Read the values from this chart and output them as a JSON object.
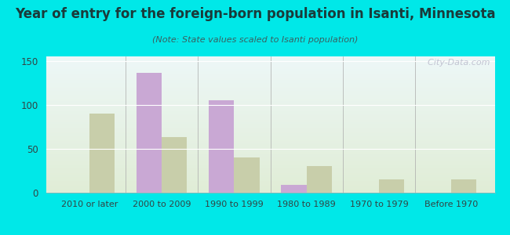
{
  "title": "Year of entry for the foreign-born population in Isanti, Minnesota",
  "subtitle": "(Note: State values scaled to Isanti population)",
  "categories": [
    "2010 or later",
    "2000 to 2009",
    "1990 to 1999",
    "1980 to 1989",
    "1970 to 1979",
    "Before 1970"
  ],
  "isanti_values": [
    0,
    136,
    105,
    9,
    0,
    0
  ],
  "minnesota_values": [
    90,
    63,
    40,
    30,
    15,
    15
  ],
  "isanti_color": "#c9a8d4",
  "minnesota_color": "#c8ceaa",
  "background_outer": "#00e8e8",
  "ylim": [
    0,
    155
  ],
  "yticks": [
    0,
    50,
    100,
    150
  ],
  "bar_width": 0.35,
  "watermark": "  City-Data.com",
  "title_color": "#1a3a3a",
  "subtitle_color": "#3a6060",
  "tick_color": "#334444"
}
